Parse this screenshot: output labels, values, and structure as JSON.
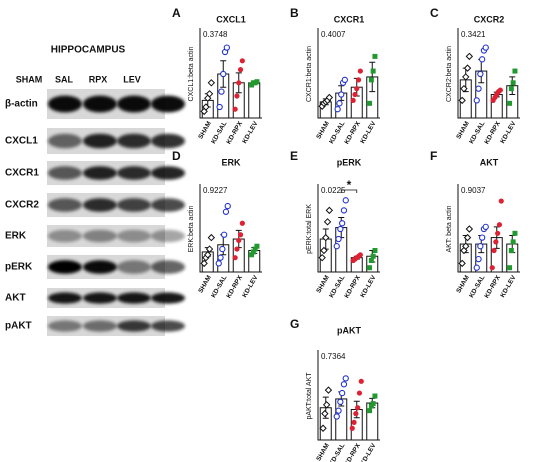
{
  "blot": {
    "title": "HIPPOCAMPUS",
    "lanes": [
      "SHAM",
      "SAL",
      "RPX",
      "LEV"
    ],
    "rows": [
      "β-actin",
      "CXCL1",
      "CXCR1",
      "CXCR2",
      "ERK",
      "pERK",
      "AKT",
      "pAKT"
    ]
  },
  "chart_data": [
    {
      "type": "bar",
      "panel": "A",
      "title": "CXCL1",
      "ylabel": "CXCL1:beta actin",
      "pvalue": "0.3748",
      "categories": [
        "SHAM",
        "KD-SAL",
        "KD-RPX",
        "KD-LEV"
      ],
      "colors": [
        "#111111",
        "#2233cc",
        "#dd2233",
        "#22992e"
      ],
      "markers": [
        "diamond",
        "circle",
        "circle-filled",
        "square-filled"
      ],
      "ylim": [
        0,
        4
      ],
      "values": [
        0.8,
        2.0,
        1.6,
        1.6
      ],
      "errors": [
        0.3,
        0.6,
        0.45,
        0.05
      ],
      "points": [
        [
          0.3,
          0.5,
          0.9,
          1.1,
          1.6
        ],
        [
          0.5,
          1.2,
          2.0,
          3.0,
          3.2
        ],
        [
          0.4,
          1.0,
          1.6,
          2.2,
          2.6
        ],
        [
          1.5,
          1.6,
          1.6,
          1.65
        ]
      ]
    },
    {
      "type": "bar",
      "panel": "B",
      "title": "CXCR1",
      "ylabel": "CXCR1:beta actin",
      "pvalue": "0.4007",
      "categories": [
        "SHAM",
        "KD-SAL",
        "KD-RPX",
        "KD-LEV"
      ],
      "colors": [
        "#111111",
        "#2233cc",
        "#dd2233",
        "#22992e"
      ],
      "markers": [
        "diamond",
        "circle",
        "circle-filled",
        "square-filled"
      ],
      "ylim": [
        0,
        3
      ],
      "values": [
        0.55,
        0.85,
        1.05,
        1.4
      ],
      "errors": [
        0.1,
        0.25,
        0.3,
        0.5
      ],
      "points": [
        [
          0.4,
          0.5,
          0.55,
          0.6,
          0.7
        ],
        [
          0.3,
          0.5,
          0.8,
          1.2,
          1.3
        ],
        [
          0.6,
          0.8,
          1.0,
          1.3,
          1.6
        ],
        [
          0.5,
          1.3,
          1.6,
          2.1
        ]
      ]
    },
    {
      "type": "bar",
      "panel": "C",
      "title": "CXCR2",
      "ylabel": "CXCR2:beta actin",
      "pvalue": "0.3421",
      "categories": [
        "SHAM",
        "KD-SAL",
        "KD-RPX",
        "KD-LEV"
      ],
      "colors": [
        "#111111",
        "#2233cc",
        "#dd2233",
        "#22992e"
      ],
      "markers": [
        "diamond",
        "circle",
        "circle-filled",
        "square-filled"
      ],
      "ylim": [
        0,
        3
      ],
      "values": [
        1.3,
        1.6,
        0.8,
        1.1
      ],
      "errors": [
        0.4,
        0.4,
        0.08,
        0.3
      ],
      "points": [
        [
          0.6,
          1.0,
          1.4,
          1.7,
          2.1
        ],
        [
          0.6,
          1.0,
          1.5,
          2.0,
          2.3,
          2.4
        ],
        [
          0.6,
          0.7,
          0.8,
          0.9,
          0.95
        ],
        [
          0.5,
          1.0,
          1.2,
          1.6
        ]
      ]
    },
    {
      "type": "bar",
      "panel": "D",
      "title": "ERK",
      "ylabel": "ERK:beta actin",
      "pvalue": "0.9227",
      "categories": [
        "SHAM",
        "KD-SAL",
        "KD-RPX",
        "KD-LEV"
      ],
      "colors": [
        "#111111",
        "#2233cc",
        "#dd2233",
        "#22992e"
      ],
      "markers": [
        "diamond",
        "circle",
        "circle-filled",
        "square-filled"
      ],
      "ylim": [
        0,
        3
      ],
      "values": [
        0.7,
        0.95,
        1.15,
        0.75
      ],
      "errors": [
        0.15,
        0.35,
        0.3,
        0.1
      ],
      "points": [
        [
          0.3,
          0.5,
          0.6,
          0.8,
          1.2
        ],
        [
          0.3,
          0.5,
          0.8,
          1.3,
          2.1,
          2.3
        ],
        [
          0.5,
          0.8,
          1.1,
          1.3,
          1.7
        ],
        [
          0.6,
          0.7,
          0.8,
          0.9
        ]
      ]
    },
    {
      "type": "bar",
      "panel": "E",
      "title": "pERK",
      "ylabel": "pERK:total ERK",
      "pvalue": "0.0225",
      "sig_label": "*",
      "categories": [
        "SHAM",
        "KD-SAL",
        "KD-RPX",
        "KD-LEV"
      ],
      "colors": [
        "#111111",
        "#2233cc",
        "#dd2233",
        "#22992e"
      ],
      "markers": [
        "diamond",
        "circle",
        "circle-filled",
        "square-filled"
      ],
      "ylim": [
        0,
        6
      ],
      "values": [
        2.3,
        3.1,
        1.0,
        1.1
      ],
      "errors": [
        0.7,
        0.7,
        0.1,
        0.4
      ],
      "points": [
        [
          1.0,
          1.5,
          2.4,
          3.5,
          4.3
        ],
        [
          1.8,
          2.3,
          3.0,
          3.4,
          4.3,
          5.0
        ],
        [
          0.8,
          0.9,
          1.0,
          1.1,
          1.2
        ],
        [
          0.3,
          0.8,
          1.1,
          1.5
        ]
      ]
    },
    {
      "type": "bar",
      "panel": "F",
      "title": "AKT",
      "ylabel": "AKT: beta actin",
      "pvalue": "0.9037",
      "categories": [
        "SHAM",
        "KD-SAL",
        "KD-RPX",
        "KD-LEV"
      ],
      "colors": [
        "#111111",
        "#2233cc",
        "#dd2233",
        "#22992e"
      ],
      "markers": [
        "diamond",
        "circle",
        "circle-filled",
        "square-filled"
      ],
      "ylim": [
        0,
        2
      ],
      "values": [
        0.65,
        0.65,
        0.8,
        0.65
      ],
      "errors": [
        0.2,
        0.2,
        0.25,
        0.2
      ],
      "points": [
        [
          0.2,
          0.5,
          0.6,
          0.8,
          1.0
        ],
        [
          0.1,
          0.3,
          0.6,
          0.8,
          1.0,
          1.05
        ],
        [
          0.1,
          0.5,
          0.7,
          0.9,
          1.1,
          1.65
        ],
        [
          0.1,
          0.5,
          0.7,
          0.9
        ]
      ]
    },
    {
      "type": "bar",
      "panel": "G",
      "title": "pAKT",
      "ylabel": "pAKT:total AKT",
      "pvalue": "0.7364",
      "categories": [
        "SHAM",
        "KD-SAL",
        "KD-RPX",
        "KD-LEV"
      ],
      "colors": [
        "#111111",
        "#2233cc",
        "#dd2233",
        "#22992e"
      ],
      "markers": [
        "diamond",
        "circle",
        "circle-filled",
        "square-filled"
      ],
      "ylim": [
        0,
        15
      ],
      "values": [
        5.5,
        7.0,
        5.2,
        6.3
      ],
      "errors": [
        1.8,
        1.2,
        1.4,
        0.8
      ],
      "points": [
        [
          2.0,
          4.5,
          6.0,
          8.5
        ],
        [
          4.0,
          5.0,
          6.5,
          8.0,
          9.5,
          10.5
        ],
        [
          2.0,
          3.0,
          4.5,
          5.5,
          8.0,
          10.0
        ],
        [
          5.0,
          5.8,
          6.2,
          7.5
        ]
      ]
    }
  ]
}
